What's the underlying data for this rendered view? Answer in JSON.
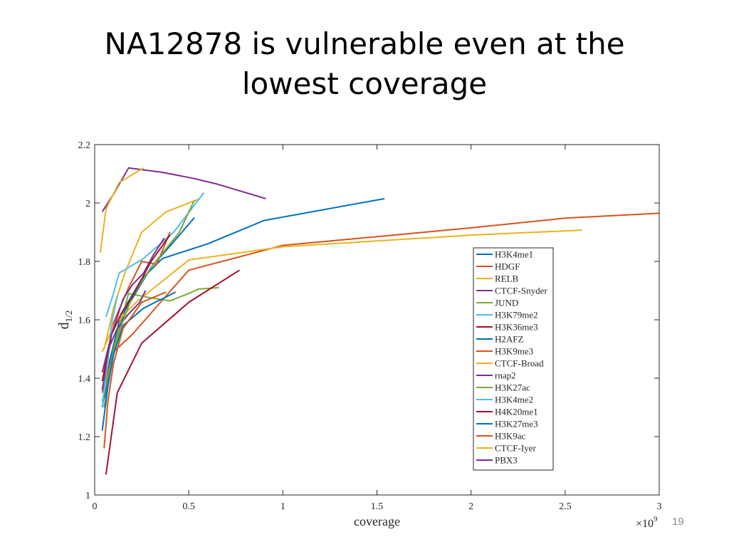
{
  "slide": {
    "title_line1": "NA12878 is vulnerable even at the",
    "title_line2": "lowest coverage",
    "page_number": "19"
  },
  "chart_data": {
    "type": "line",
    "title": "",
    "xlabel": "coverage",
    "ylabel": "d",
    "ylabel_subscript": "1/2",
    "x_exponent_label": "×10",
    "x_exponent_power": "9",
    "xlim": [
      0,
      3
    ],
    "ylim": [
      1,
      2.2
    ],
    "x_ticks": [
      0,
      0.5,
      1,
      1.5,
      2,
      2.5,
      3
    ],
    "x_tick_labels": [
      "0",
      "0.5",
      "1",
      "1.5",
      "2",
      "2.5",
      "3"
    ],
    "y_ticks": [
      1,
      1.2,
      1.4,
      1.6,
      1.8,
      2,
      2.2
    ],
    "y_tick_labels": [
      "1",
      "1.2",
      "1.4",
      "1.6",
      "1.8",
      "2",
      "2.2"
    ],
    "grid": false,
    "legend_position": "right",
    "series": [
      {
        "name": "H3K4me1",
        "color": "#0072BD",
        "x": [
          0.04,
          0.08,
          0.14,
          0.25,
          0.36,
          0.6,
          0.9,
          1.54
        ],
        "y": [
          1.3,
          1.46,
          1.62,
          1.74,
          1.81,
          1.86,
          1.94,
          2.015
        ]
      },
      {
        "name": "HDGF",
        "color": "#D95319",
        "x": [
          0.04,
          0.1,
          0.2,
          0.35,
          0.5,
          1.0,
          1.5,
          2.0,
          2.5,
          3.0
        ],
        "y": [
          1.35,
          1.49,
          1.55,
          1.66,
          1.77,
          1.855,
          1.885,
          1.915,
          1.948,
          1.965
        ]
      },
      {
        "name": "RELB",
        "color": "#EDB120",
        "x": [
          0.05,
          0.1,
          0.16,
          0.25,
          0.38,
          0.56
        ],
        "y": [
          1.5,
          1.64,
          1.76,
          1.9,
          1.97,
          2.015
        ]
      },
      {
        "name": "CTCF-Snyder",
        "color": "#7E2F8E",
        "x": [
          0.04,
          0.1,
          0.18,
          0.36,
          0.52,
          0.65,
          0.91
        ],
        "y": [
          1.97,
          2.03,
          2.12,
          2.105,
          2.085,
          2.065,
          2.015
        ]
      },
      {
        "name": "JUND",
        "color": "#77AC30",
        "x": [
          0.05,
          0.1,
          0.18,
          0.3,
          0.4,
          0.5,
          0.55,
          0.66
        ],
        "y": [
          1.3,
          1.5,
          1.69,
          1.675,
          1.665,
          1.69,
          1.705,
          1.71
        ]
      },
      {
        "name": "H3K79me2",
        "color": "#4DBEEE",
        "x": [
          0.06,
          0.1,
          0.13,
          0.26,
          0.42,
          0.58
        ],
        "y": [
          1.61,
          1.69,
          1.76,
          1.81,
          1.9,
          2.035
        ]
      },
      {
        "name": "H3K36me3",
        "color": "#A2142F",
        "x": [
          0.06,
          0.12,
          0.25,
          0.5,
          0.77
        ],
        "y": [
          1.07,
          1.35,
          1.52,
          1.66,
          1.77
        ]
      },
      {
        "name": "H2AFZ",
        "color": "#0072BD",
        "x": [
          0.05,
          0.09,
          0.16,
          0.3,
          0.41,
          0.53
        ],
        "y": [
          1.33,
          1.46,
          1.63,
          1.78,
          1.86,
          1.95
        ]
      },
      {
        "name": "H3K9me3",
        "color": "#D95319",
        "x": [
          0.05,
          0.1,
          0.18,
          0.25,
          0.33,
          0.4
        ],
        "y": [
          1.39,
          1.59,
          1.71,
          1.8,
          1.79,
          1.9
        ]
      },
      {
        "name": "CTCF-Broad",
        "color": "#EDB120",
        "x": [
          0.04,
          0.1,
          0.22,
          0.5,
          1.0,
          1.5,
          2.0,
          2.59
        ],
        "y": [
          1.49,
          1.58,
          1.66,
          1.805,
          1.85,
          1.87,
          1.89,
          1.907
        ]
      },
      {
        "name": "rnap2",
        "color": "#7E2F8E",
        "x": [
          0.04,
          0.08,
          0.12,
          0.18,
          0.24,
          0.27
        ],
        "y": [
          1.36,
          1.51,
          1.57,
          1.62,
          1.66,
          1.7
        ]
      },
      {
        "name": "H3K27ac",
        "color": "#77AC30",
        "x": [
          0.04,
          0.08,
          0.13,
          0.2,
          0.3,
          0.45,
          0.53
        ],
        "y": [
          1.32,
          1.43,
          1.56,
          1.68,
          1.78,
          1.9,
          2.01
        ]
      },
      {
        "name": "H3K4me2",
        "color": "#4DBEEE",
        "x": [
          0.04,
          0.07,
          0.09,
          0.12
        ],
        "y": [
          1.3,
          1.46,
          1.59,
          1.68
        ]
      },
      {
        "name": "H4K20me1",
        "color": "#A2142F",
        "x": [
          0.04,
          0.09,
          0.14,
          0.2,
          0.3,
          0.4
        ],
        "y": [
          1.39,
          1.55,
          1.62,
          1.68,
          1.8,
          1.89
        ]
      },
      {
        "name": "H3K27me3",
        "color": "#0072BD",
        "x": [
          0.04,
          0.07,
          0.1,
          0.15,
          0.26,
          0.43
        ],
        "y": [
          1.22,
          1.37,
          1.48,
          1.58,
          1.64,
          1.695
        ]
      },
      {
        "name": "H3K9ac",
        "color": "#D95319",
        "x": [
          0.05,
          0.07,
          0.1,
          0.15,
          0.25,
          0.38
        ],
        "y": [
          1.16,
          1.32,
          1.45,
          1.57,
          1.66,
          1.695
        ]
      },
      {
        "name": "CTCF-Iyer",
        "color": "#EDB120",
        "x": [
          0.03,
          0.06,
          0.13,
          0.26
        ],
        "y": [
          1.83,
          1.98,
          2.07,
          2.12
        ]
      },
      {
        "name": "PBX3",
        "color": "#7E2F8E",
        "x": [
          0.04,
          0.09,
          0.15,
          0.2,
          0.26,
          0.31,
          0.37
        ],
        "y": [
          1.42,
          1.55,
          1.67,
          1.72,
          1.76,
          1.82,
          1.88
        ]
      }
    ]
  }
}
